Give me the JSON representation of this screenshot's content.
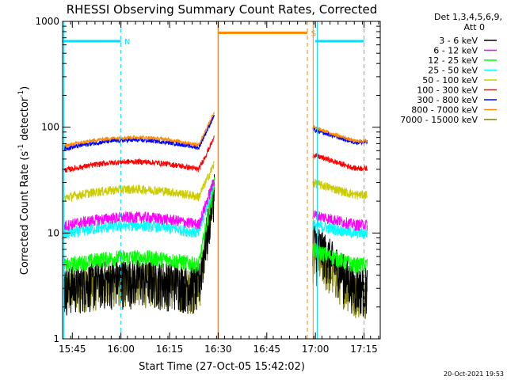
{
  "chart_data": {
    "type": "line",
    "title": "RHESSI Observing Summary Count Rates, Corrected",
    "xlabel": "Start Time (27-Oct-05 15:42:02)",
    "ylabel_main": "Corrected Count Rate (s",
    "ylabel_sup1": "-1",
    "ylabel_mid": " detector",
    "ylabel_sup2": "-1",
    "ylabel_end": ")",
    "yscale": "log",
    "ylim": [
      1,
      1000
    ],
    "xlim_minutes": [
      0,
      98
    ],
    "x_ticks": [
      {
        "label": "15:45",
        "t": 3.0
      },
      {
        "label": "16:00",
        "t": 18.0
      },
      {
        "label": "16:15",
        "t": 33.0
      },
      {
        "label": "16:30",
        "t": 48.0
      },
      {
        "label": "16:45",
        "t": 63.0
      },
      {
        "label": "17:00",
        "t": 78.0
      },
      {
        "label": "17:15",
        "t": 93.0
      }
    ],
    "y_ticks": [
      {
        "label": "1",
        "v": 1
      },
      {
        "label": "10",
        "v": 10
      },
      {
        "label": "100",
        "v": 100
      },
      {
        "label": "1000",
        "v": 1000
      }
    ],
    "legend_header": [
      "Det 1,3,4,5,6,9,",
      "Att 0"
    ],
    "series": [
      {
        "name": "3 - 6 keV",
        "color": "#000000"
      },
      {
        "name": "6 - 12 keV",
        "color": "#ff00ff"
      },
      {
        "name": "12 - 25 keV",
        "color": "#00ff00"
      },
      {
        "name": "25 - 50 keV",
        "color": "#00ffff"
      },
      {
        "name": "50 - 100 keV",
        "color": "#cccc00"
      },
      {
        "name": "100 - 300 keV",
        "color": "#ff0000"
      },
      {
        "name": "300 - 800 keV",
        "color": "#0000ff"
      },
      {
        "name": "800 - 7000 keV",
        "color": "#ff8800"
      },
      {
        "name": "7000 - 15000 keV",
        "color": "#808000"
      }
    ],
    "annotations": [
      {
        "label": "N",
        "color": "#00ddff",
        "segment_minutes": [
          0,
          18.0
        ],
        "y": 650,
        "dashed_at": 18.0
      },
      {
        "label": "S",
        "color": "#ff8800",
        "segment_minutes": [
          48.0,
          75.5
        ],
        "y": 780,
        "dashed_at": 75.5
      },
      {
        "label": "",
        "color": "#00ddff",
        "segment_minutes": [
          78.0,
          93.0
        ],
        "y": 650,
        "dashed_at": 93.0
      }
    ],
    "timestamp": "20-Oct-2021 19:53"
  }
}
